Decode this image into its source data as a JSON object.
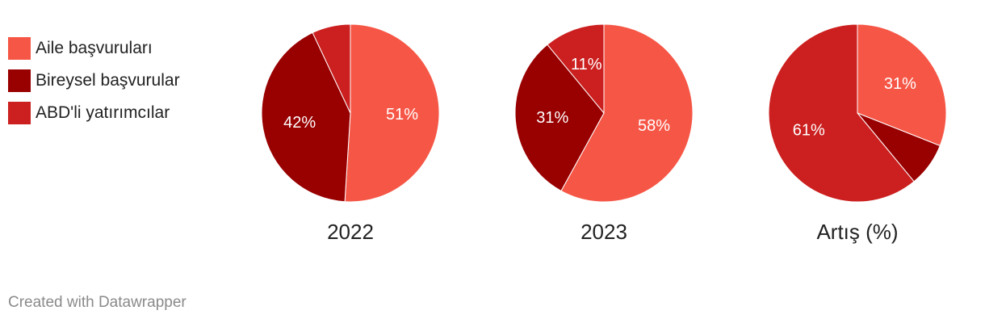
{
  "legend": {
    "items": [
      {
        "label": "Aile başvuruları",
        "color": "#f65646"
      },
      {
        "label": "Bireysel başvurular",
        "color": "#990000"
      },
      {
        "label": "ABD'li yatırımcılar",
        "color": "#cc1f1f"
      }
    ]
  },
  "chart_data": [
    {
      "type": "pie",
      "title": "2022",
      "labels": [
        "Aile başvuruları",
        "Bireysel başvurular",
        "ABD'li yatırımcılar"
      ],
      "values": [
        51,
        42,
        7
      ],
      "value_labels": [
        "51%",
        "42%",
        ""
      ],
      "colors": [
        "#f65646",
        "#990000",
        "#cc1f1f"
      ]
    },
    {
      "type": "pie",
      "title": "2023",
      "labels": [
        "Aile başvuruları",
        "Bireysel başvurular",
        "ABD'li yatırımcılar"
      ],
      "values": [
        58,
        31,
        11
      ],
      "value_labels": [
        "58%",
        "31%",
        "11%"
      ],
      "colors": [
        "#f65646",
        "#990000",
        "#cc1f1f"
      ]
    },
    {
      "type": "pie",
      "title": "Artış (%)",
      "labels": [
        "Aile başvuruları",
        "Bireysel başvurular",
        "ABD'li yatırımcılar"
      ],
      "values": [
        31,
        8,
        61
      ],
      "value_labels": [
        "31%",
        "",
        "61%"
      ],
      "colors": [
        "#f65646",
        "#990000",
        "#cc1f1f"
      ]
    }
  ],
  "footer": {
    "credit": "Created with Datawrapper"
  }
}
